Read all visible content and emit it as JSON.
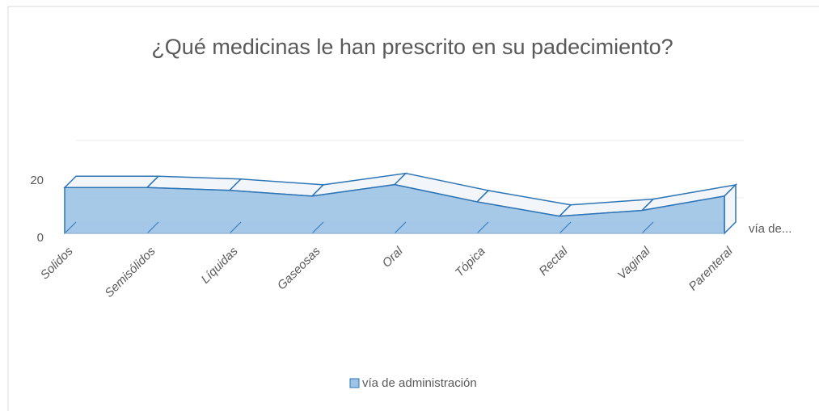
{
  "chart_data": {
    "type": "area3d",
    "title": "¿Qué medicinas le han prescrito en su padecimiento?",
    "categories": [
      "Solidos",
      "Semisólidos",
      "Líquidas",
      "Gaseosas",
      "Oral",
      "Tópica",
      "Rectal",
      "Vaginal",
      "Parenteral"
    ],
    "series": [
      {
        "name": "vía de administración",
        "color": "#9dc3e6",
        "values": [
          16,
          16,
          15,
          13,
          17,
          11,
          6,
          8,
          13
        ]
      }
    ],
    "depth_label": "vía de...",
    "ylim": [
      0,
      20
    ],
    "yticks": [
      0,
      20
    ],
    "grid": true,
    "legend": "bottom"
  }
}
